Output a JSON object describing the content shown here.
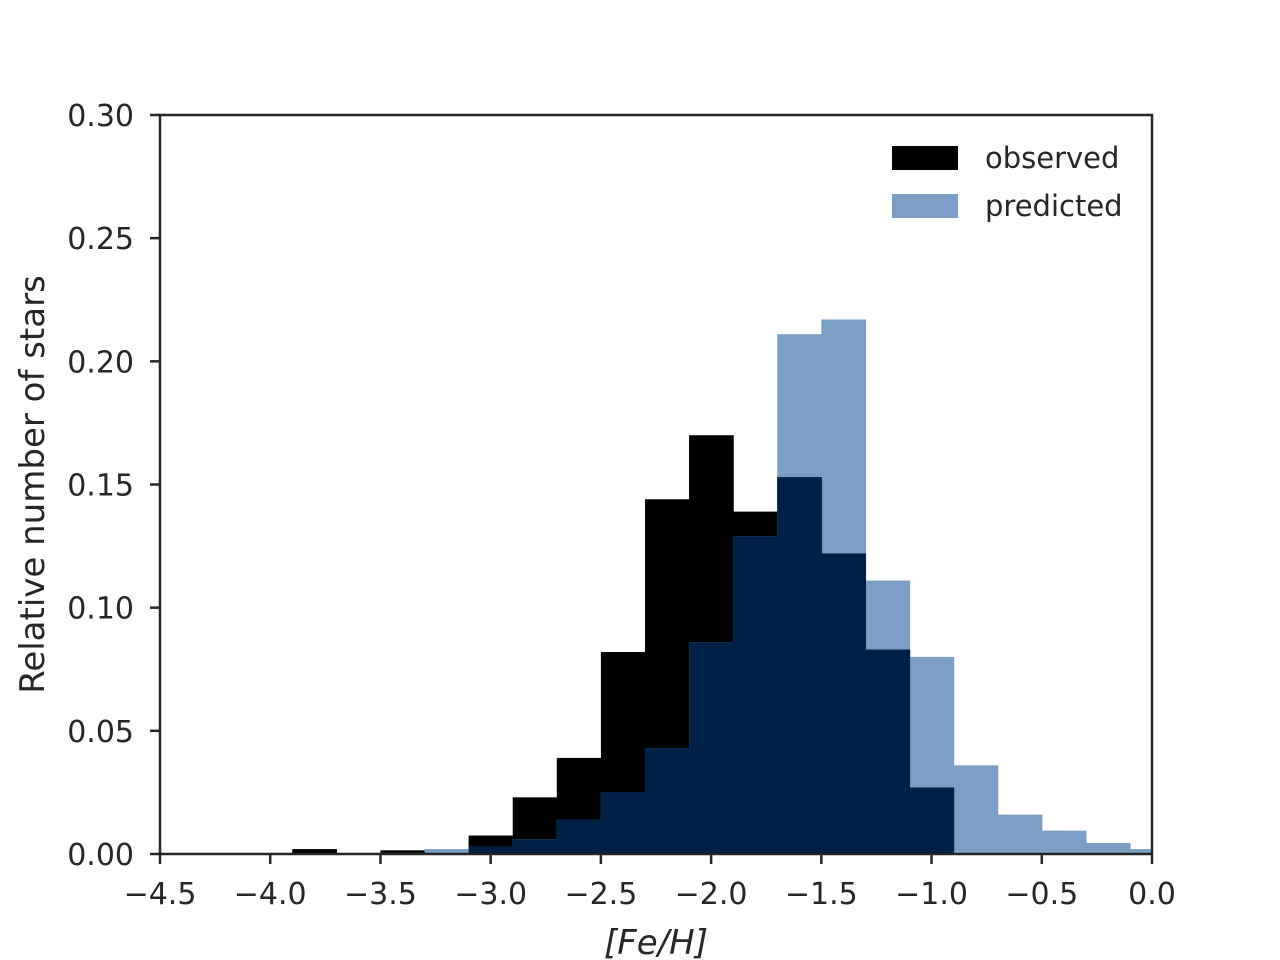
{
  "chart_data": {
    "type": "bar",
    "subtype": "histogram",
    "xlabel": "[Fe/H]",
    "ylabel": "Relative number of stars",
    "xlim": [
      -4.5,
      0.0
    ],
    "ylim": [
      0.0,
      0.3
    ],
    "xticks": [
      "−4.5",
      "−4.0",
      "−3.5",
      "−3.0",
      "−2.5",
      "−2.0",
      "−1.5",
      "−1.0",
      "−0.5",
      "0.0"
    ],
    "yticks": [
      "0.00",
      "0.05",
      "0.10",
      "0.15",
      "0.20",
      "0.25",
      "0.30"
    ],
    "bin_edges": [
      -3.9,
      -3.7,
      -3.5,
      -3.3,
      -3.1,
      -2.9,
      -2.7,
      -2.5,
      -2.3,
      -2.1,
      -1.9,
      -1.7,
      -1.5,
      -1.3,
      -1.1,
      -0.9,
      -0.7,
      -0.5,
      -0.3,
      -0.1,
      0.1
    ],
    "legend_position": "top-right",
    "grid": false,
    "series": [
      {
        "name": "observed",
        "color": "#000000",
        "values": [
          0.002,
          0.0,
          0.0015,
          0.0,
          0.0075,
          0.023,
          0.039,
          0.082,
          0.144,
          0.17,
          0.139,
          0.153,
          0.122,
          0.083,
          0.027,
          0.0,
          0.0,
          0.0,
          0.0,
          0.0
        ]
      },
      {
        "name": "predicted",
        "color": "#7a9fc7",
        "values": [
          0.0,
          0.0,
          0.0005,
          0.002,
          0.003,
          0.006,
          0.014,
          0.025,
          0.043,
          0.086,
          0.129,
          0.211,
          0.217,
          0.111,
          0.08,
          0.036,
          0.016,
          0.0095,
          0.0045,
          0.002
        ]
      }
    ],
    "overlap_color": "#002147"
  }
}
